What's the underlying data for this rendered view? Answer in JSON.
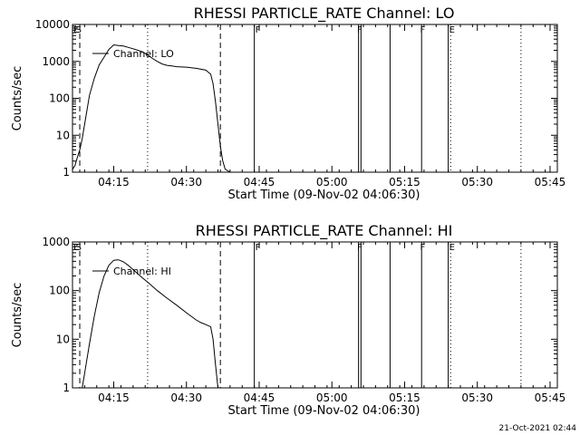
{
  "footer_timestamp": "21-Oct-2021 02:44",
  "chart_data": [
    {
      "type": "line",
      "title": "RHESSI PARTICLE_RATE Channel: LO",
      "xlabel": "Start Time (09-Nov-02 04:06:30)",
      "ylabel": "Counts/sec",
      "yscale": "log",
      "ylim": [
        1,
        10000
      ],
      "xlim_minutes_after_start": [
        0,
        100
      ],
      "x_ticks": [
        "04:15",
        "04:30",
        "04:45",
        "05:00",
        "05:15",
        "05:30",
        "05:45"
      ],
      "y_ticks": [
        "1",
        "10",
        "100",
        "1000",
        "10000"
      ],
      "legend": "Channel: LO",
      "flags": [
        {
          "label": "E",
          "time": "04:06:30"
        },
        {
          "label": "S",
          "time": "04:07:00"
        },
        {
          "label": "F",
          "time": "04:44:00"
        },
        {
          "label": "F",
          "time": "05:05:00"
        },
        {
          "label": "F",
          "time": "05:18:00"
        },
        {
          "label": "E",
          "time": "05:24:00"
        }
      ],
      "vlines": [
        {
          "time": "04:08:00",
          "style": "dashed"
        },
        {
          "time": "04:22:00",
          "style": "dotted"
        },
        {
          "time": "04:37:00",
          "style": "dashed"
        },
        {
          "time": "04:44:00",
          "style": "solid"
        },
        {
          "time": "05:05:30",
          "style": "solid"
        },
        {
          "time": "05:06:00",
          "style": "solid"
        },
        {
          "time": "05:12:00",
          "style": "solid"
        },
        {
          "time": "05:18:30",
          "style": "solid"
        },
        {
          "time": "05:24:00",
          "style": "solid"
        },
        {
          "time": "05:24:30",
          "style": "dotted"
        },
        {
          "time": "05:39:00",
          "style": "dotted"
        }
      ],
      "series": [
        {
          "x": [
            "04:06:30",
            "04:07:00",
            "04:07:30",
            "04:08:00",
            "04:08:30",
            "04:09:00",
            "04:10:00",
            "04:11:00",
            "04:12:00",
            "04:13:00",
            "04:14:00",
            "04:15:00",
            "04:16:00",
            "04:17:00",
            "04:18:00",
            "04:19:00",
            "04:20:00",
            "04:21:00",
            "04:22:00",
            "04:23:00",
            "04:24:00",
            "04:25:00",
            "04:26:00",
            "04:27:00",
            "04:28:00",
            "04:30:00",
            "04:32:00",
            "04:34:00",
            "04:35:00",
            "04:35:30",
            "04:36:00",
            "04:36:30",
            "04:37:00",
            "04:37:30",
            "04:38:00",
            "04:39:00"
          ],
          "y": [
            1.2,
            1.5,
            2.5,
            4,
            8,
            20,
            120,
            350,
            800,
            1300,
            2100,
            2800,
            2700,
            2600,
            2400,
            2200,
            2000,
            1800,
            1500,
            1200,
            1000,
            850,
            780,
            750,
            720,
            700,
            650,
            580,
            450,
            250,
            80,
            20,
            5,
            2,
            1.2,
            1
          ]
        }
      ]
    },
    {
      "type": "line",
      "title": "RHESSI PARTICLE_RATE Channel: HI",
      "xlabel": "Start Time (09-Nov-02 04:06:30)",
      "ylabel": "Counts/sec",
      "yscale": "log",
      "ylim": [
        1,
        1000
      ],
      "xlim_minutes_after_start": [
        0,
        100
      ],
      "x_ticks": [
        "04:15",
        "04:30",
        "04:45",
        "05:00",
        "05:15",
        "05:30",
        "05:45"
      ],
      "y_ticks": [
        "1",
        "10",
        "100",
        "1000"
      ],
      "legend": "Channel: HI",
      "flags": [
        {
          "label": "E",
          "time": "04:06:30"
        },
        {
          "label": "S",
          "time": "04:07:00"
        },
        {
          "label": "F",
          "time": "04:44:00"
        },
        {
          "label": "F",
          "time": "05:05:00"
        },
        {
          "label": "F",
          "time": "05:18:00"
        },
        {
          "label": "E",
          "time": "05:24:00"
        }
      ],
      "vlines": [
        {
          "time": "04:08:00",
          "style": "dashed"
        },
        {
          "time": "04:22:00",
          "style": "dotted"
        },
        {
          "time": "04:37:00",
          "style": "dashed"
        },
        {
          "time": "04:44:00",
          "style": "solid"
        },
        {
          "time": "05:05:30",
          "style": "solid"
        },
        {
          "time": "05:06:00",
          "style": "solid"
        },
        {
          "time": "05:12:00",
          "style": "solid"
        },
        {
          "time": "05:18:30",
          "style": "solid"
        },
        {
          "time": "05:24:00",
          "style": "solid"
        },
        {
          "time": "05:24:30",
          "style": "dotted"
        },
        {
          "time": "05:39:00",
          "style": "dotted"
        }
      ],
      "series": [
        {
          "x": [
            "04:08:30",
            "04:09:00",
            "04:10:00",
            "04:11:00",
            "04:12:00",
            "04:13:00",
            "04:14:00",
            "04:15:00",
            "04:16:00",
            "04:17:00",
            "04:18:00",
            "04:19:00",
            "04:20:00",
            "04:21:00",
            "04:22:00",
            "04:24:00",
            "04:26:00",
            "04:28:00",
            "04:30:00",
            "04:32:00",
            "04:33:00",
            "04:34:00",
            "04:35:00",
            "04:35:30",
            "04:36:00",
            "04:36:30"
          ],
          "y": [
            1,
            2,
            8,
            30,
            90,
            200,
            330,
            420,
            430,
            390,
            330,
            270,
            220,
            180,
            150,
            100,
            70,
            50,
            35,
            25,
            22,
            20,
            18,
            10,
            3,
            1
          ]
        }
      ]
    }
  ]
}
